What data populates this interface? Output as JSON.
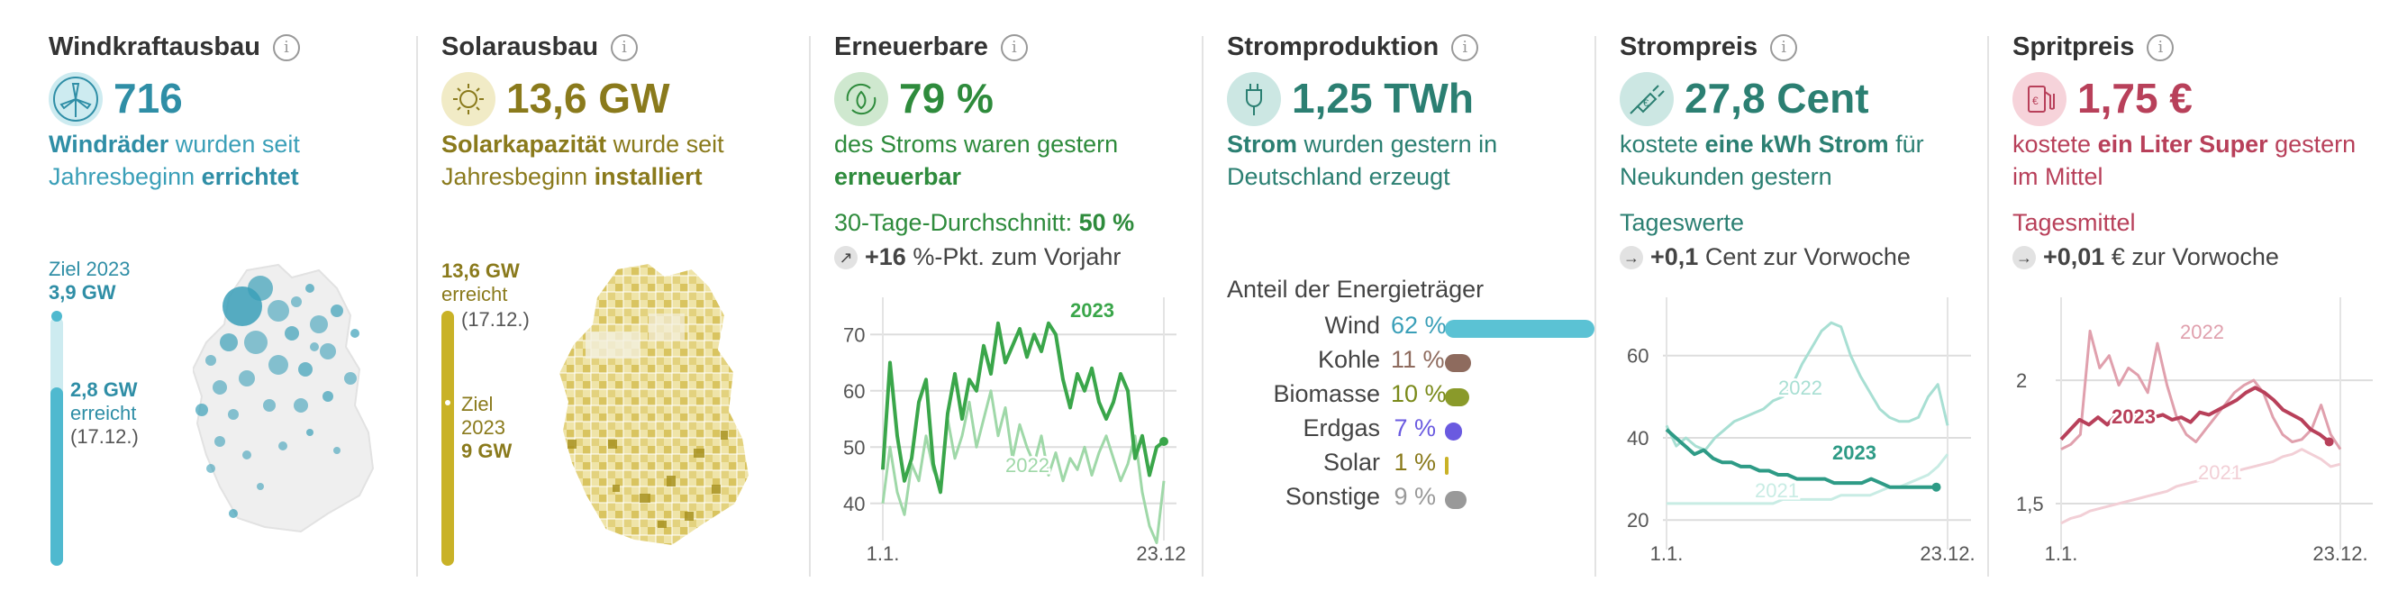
{
  "info_glyph": "i",
  "wind": {
    "title": "Windkraftausbau",
    "value": "716",
    "desc_bold1": "Windräder",
    "desc_text1": " wurden seit Jahresbeginn ",
    "desc_bold2": "errichtet",
    "target_label": "Ziel 2023",
    "target_value": "3,9 GW",
    "reached_value": "2,8 GW",
    "reached_label": "erreicht",
    "reached_date": "(17.12.)",
    "color": "#3a9fb8",
    "progress": {
      "reached": 2.8,
      "target": 3.9
    }
  },
  "solar": {
    "title": "Solarausbau",
    "value": "13,6 GW",
    "desc_bold1": "Solarkapazität",
    "desc_text1": " wurde seit Jahresbeginn ",
    "desc_bold2": "installiert",
    "reached_value": "13,6 GW",
    "reached_label": "erreicht",
    "reached_date": "(17.12.)",
    "target_label1": "Ziel",
    "target_label2": "2023",
    "target_value": "9 GW",
    "color": "#8a7a1c",
    "progress": {
      "reached": 13.6,
      "target": 9
    }
  },
  "renew": {
    "title": "Erneuerbare",
    "value": "79 %",
    "desc_text1": "des Stroms waren gestern ",
    "desc_bold1": "erneuerbar",
    "avg_text": "30-Tage-Durchschnitt: ",
    "avg_value": "50 %",
    "change_arrow": "↗",
    "change_value": "+16",
    "change_text": " %-Pkt. zum Vorjahr",
    "color": "#2e8b3c"
  },
  "strom": {
    "title": "Stromproduktion",
    "value": "1,25 TWh",
    "desc_bold1": "Strom",
    "desc_text1": " wurden gestern in Deutschland erzeugt",
    "mix_title": "Anteil der Energieträger",
    "color": "#2b7f72",
    "mix": [
      {
        "name": "Wind",
        "label": "62 %",
        "value": 62,
        "color": "#5bc2d4",
        "text_color": "#3a9fb8"
      },
      {
        "name": "Kohle",
        "label": "11 %",
        "value": 11,
        "color": "#8e6b5e",
        "text_color": "#8e6b5e"
      },
      {
        "name": "Biomasse",
        "label": "10 %",
        "value": 10,
        "color": "#8a9a2a",
        "text_color": "#7a8a1a"
      },
      {
        "name": "Erdgas",
        "label": "7 %",
        "value": 7,
        "color": "#6a5ae0",
        "text_color": "#6a5ae0"
      },
      {
        "name": "Solar",
        "label": "1 %",
        "value": 1,
        "color": "#c9b227",
        "text_color": "#8a7a1c"
      },
      {
        "name": "Sonstige",
        "label": "9 %",
        "value": 9,
        "color": "#999999",
        "text_color": "#999999"
      }
    ]
  },
  "price": {
    "title": "Strompreis",
    "value": "27,8 Cent",
    "desc_text1": "kostete ",
    "desc_bold1": "eine kWh Strom",
    "desc_text2": " für Neukunden gestern",
    "sub_label": "Tageswerte",
    "change_arrow": "→",
    "change_value": "+0,1",
    "change_text": " Cent zur Vorwoche",
    "color": "#2b7f72"
  },
  "fuel": {
    "title": "Spritpreis",
    "value": "1,75 €",
    "desc_text1": "kostete ",
    "desc_bold1": "ein Liter Super",
    "desc_text2": " gestern im Mittel",
    "sub_label": "Tagesmittel",
    "change_arrow": "→",
    "change_value": "+0,01",
    "change_text": " € zur Vorwoche",
    "color": "#b8405a"
  },
  "chart_data": [
    {
      "type": "line",
      "chart": "renew",
      "x_ticks": [
        "1.1.",
        "23.12."
      ],
      "ylim": [
        35,
        75
      ],
      "y_ticks": [
        40,
        50,
        60,
        70
      ],
      "grid": true,
      "series": [
        {
          "name": "2023",
          "values": [
            46,
            65,
            52,
            44,
            48,
            58,
            62,
            47,
            42,
            56,
            63,
            55,
            62,
            60,
            68,
            63,
            72,
            65,
            68,
            71,
            66,
            70,
            67,
            72,
            70,
            62,
            57,
            63,
            60,
            64,
            58,
            55,
            58,
            63,
            60,
            48,
            52,
            45,
            50,
            51
          ],
          "color": "#3aa64a"
        },
        {
          "name": "2022",
          "values": [
            40,
            50,
            42,
            38,
            47,
            44,
            52,
            46,
            43,
            55,
            48,
            52,
            58,
            50,
            55,
            60,
            52,
            57,
            48,
            54,
            50,
            47,
            52,
            45,
            49,
            44,
            48,
            46,
            50,
            45,
            49,
            52,
            48,
            44,
            47,
            52,
            42,
            36,
            33,
            44
          ],
          "color": "#9fd8a8"
        }
      ]
    },
    {
      "type": "line",
      "chart": "price",
      "x_ticks": [
        "1.1.",
        "23.12."
      ],
      "ylim": [
        15,
        72
      ],
      "y_ticks": [
        20,
        40,
        60
      ],
      "grid": true,
      "series": [
        {
          "name": "2023",
          "values": [
            42,
            40,
            38,
            36,
            37,
            35,
            34,
            34,
            33,
            33,
            32,
            32,
            31,
            31,
            30,
            30,
            30,
            30,
            29,
            29,
            29,
            29,
            30,
            29,
            28,
            28,
            28,
            28,
            28,
            28
          ],
          "color": "#2e9b86"
        },
        {
          "name": "2022",
          "values": [
            43,
            38,
            40,
            38,
            37,
            40,
            42,
            44,
            45,
            46,
            47,
            49,
            50,
            53,
            58,
            62,
            66,
            68,
            67,
            60,
            55,
            51,
            47,
            45,
            44,
            44,
            45,
            50,
            53,
            43
          ],
          "color": "#a8dfd3"
        },
        {
          "name": "2021",
          "values": [
            24,
            24,
            24,
            24,
            24,
            24,
            24,
            24,
            24,
            24,
            24,
            24,
            25,
            25,
            25,
            25,
            25,
            25,
            26,
            26,
            26,
            26,
            27,
            28,
            28,
            29,
            30,
            31,
            33,
            36
          ],
          "color": "#c8ece4"
        }
      ]
    },
    {
      "type": "line",
      "chart": "fuel",
      "x_ticks": [
        "1.1.",
        "23.12."
      ],
      "ylim": [
        1.35,
        2.3
      ],
      "y_ticks": [
        1.5,
        2
      ],
      "grid": true,
      "series": [
        {
          "name": "2023",
          "values": [
            1.76,
            1.8,
            1.84,
            1.82,
            1.85,
            1.82,
            1.86,
            1.83,
            1.85,
            1.87,
            1.85,
            1.86,
            1.84,
            1.85,
            1.83,
            1.87,
            1.86,
            1.88,
            1.9,
            1.92,
            1.95,
            1.97,
            1.95,
            1.92,
            1.88,
            1.86,
            1.84,
            1.8,
            1.78,
            1.75
          ],
          "color": "#b8405a"
        },
        {
          "name": "2022",
          "values": [
            1.72,
            1.74,
            1.78,
            2.2,
            2.05,
            2.1,
            1.98,
            2.05,
            2.02,
            1.95,
            2.15,
            1.98,
            1.85,
            1.78,
            1.75,
            1.8,
            1.85,
            1.9,
            1.95,
            1.98,
            2.0,
            1.95,
            1.85,
            1.78,
            1.75,
            1.76,
            1.8,
            1.9,
            1.78,
            1.72
          ],
          "color": "#e0a0ad"
        },
        {
          "name": "2021",
          "values": [
            1.42,
            1.44,
            1.45,
            1.47,
            1.48,
            1.49,
            1.5,
            1.51,
            1.52,
            1.53,
            1.54,
            1.55,
            1.57,
            1.58,
            1.59,
            1.6,
            1.61,
            1.62,
            1.63,
            1.64,
            1.65,
            1.66,
            1.67,
            1.69,
            1.7,
            1.72,
            1.7,
            1.68,
            1.65,
            1.66
          ],
          "color": "#f2cfd6"
        }
      ]
    },
    {
      "type": "bar",
      "chart": "strom-mix",
      "categories": [
        "Wind",
        "Kohle",
        "Biomasse",
        "Erdgas",
        "Solar",
        "Sonstige"
      ],
      "values": [
        62,
        11,
        10,
        7,
        1,
        9
      ]
    }
  ]
}
